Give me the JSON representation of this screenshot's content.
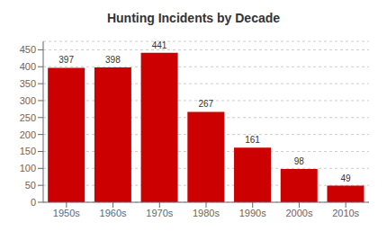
{
  "chart_data": {
    "type": "bar",
    "title": "Hunting Incidents by Decade",
    "categories": [
      "1950s",
      "1960s",
      "1970s",
      "1980s",
      "1990s",
      "2000s",
      "2010s"
    ],
    "values": [
      397,
      398,
      441,
      267,
      161,
      98,
      49
    ],
    "color": "#CC0000",
    "ylim": [
      0,
      475
    ],
    "yticks": [
      0,
      50,
      100,
      150,
      200,
      250,
      300,
      350,
      400,
      450
    ],
    "grid": true,
    "data_labels": true
  }
}
